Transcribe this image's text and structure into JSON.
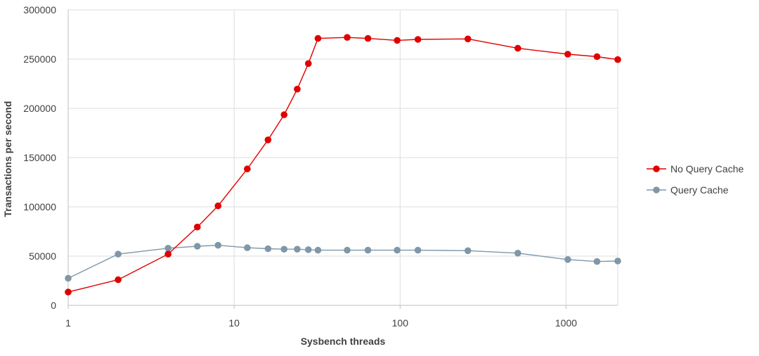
{
  "chart_data": {
    "type": "line",
    "title": "",
    "xlabel": "Sysbench threads",
    "ylabel": "Transactions per second",
    "x_scale": "log",
    "xlim": [
      1,
      2048
    ],
    "ylim": [
      0,
      300000
    ],
    "x_ticks": [
      1,
      10,
      100,
      1000
    ],
    "x_tick_labels": [
      "1",
      "10",
      "100",
      "1000"
    ],
    "y_ticks": [
      0,
      50000,
      100000,
      150000,
      200000,
      250000,
      300000
    ],
    "y_tick_labels": [
      "0",
      "50000",
      "100000",
      "150000",
      "200000",
      "250000",
      "300000"
    ],
    "grid": true,
    "legend_position": "right",
    "series": [
      {
        "name": "No Query Cache",
        "color": "#e00000",
        "x": [
          1,
          2,
          4,
          6,
          8,
          12,
          16,
          20,
          24,
          28,
          32,
          48,
          64,
          96,
          128,
          256,
          512,
          1024,
          1536,
          2048
        ],
        "y": [
          13500,
          26000,
          52000,
          79500,
          101000,
          138500,
          168000,
          193500,
          219500,
          245500,
          271000,
          272000,
          271000,
          269000,
          270000,
          270500,
          261000,
          255000,
          252500,
          249500
        ]
      },
      {
        "name": "Query Cache",
        "color": "#7f97a8",
        "x": [
          1,
          2,
          4,
          6,
          8,
          12,
          16,
          20,
          24,
          28,
          32,
          48,
          64,
          96,
          128,
          256,
          512,
          1024,
          1536,
          2048
        ],
        "y": [
          27500,
          52000,
          58000,
          60000,
          61000,
          58500,
          57500,
          57000,
          57000,
          56500,
          56000,
          56000,
          56000,
          56000,
          56000,
          55500,
          53000,
          46500,
          44500,
          45000
        ]
      }
    ]
  }
}
